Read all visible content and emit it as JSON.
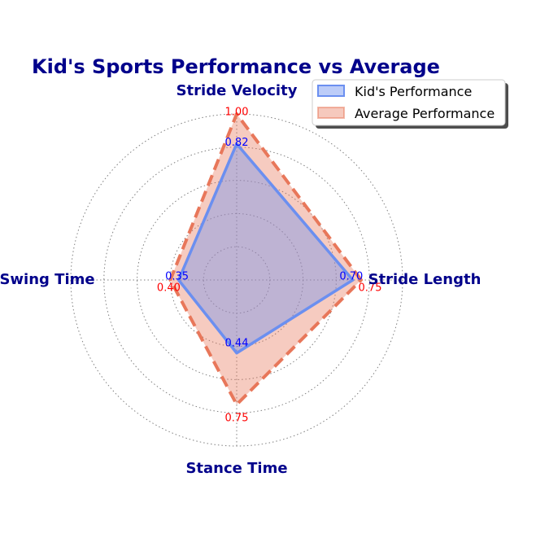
{
  "chart_data": {
    "type": "radar",
    "title": "Kid's Sports Performance vs Average",
    "categories": [
      "Stride Length",
      "Stride Velocity",
      "Swing Time",
      "Stance Time"
    ],
    "series": [
      {
        "name": "Kid's Performance",
        "values": [
          0.7,
          0.82,
          0.35,
          0.44
        ],
        "color": "#6b8ff0",
        "label_color": "#0000ff",
        "line_style": "solid"
      },
      {
        "name": "Average Performance",
        "values": [
          0.75,
          1.0,
          0.4,
          0.75
        ],
        "color": "#e8775a",
        "label_color": "#ff0000",
        "line_style": "dashed"
      }
    ],
    "value_labels": {
      "kid": [
        "0.70",
        "0.82",
        "0.35",
        "0.44"
      ],
      "avg": [
        "0.75",
        "1.00",
        "0.40",
        "0.75"
      ]
    },
    "rlim": [
      0,
      1
    ],
    "grid": true,
    "legend_position": "top-right",
    "colors": {
      "title": "#00008b",
      "axis_labels": "#00008b",
      "grid": "#808080"
    }
  }
}
